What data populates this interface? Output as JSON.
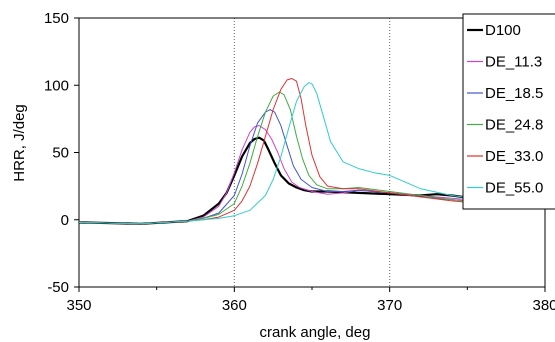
{
  "chart_data": {
    "type": "line",
    "title": "",
    "xlabel": "crank angle, deg",
    "ylabel": "HRR, J/deg",
    "xlim": [
      350,
      380
    ],
    "ylim": [
      -50,
      150
    ],
    "xticks": [
      350,
      360,
      370,
      380
    ],
    "yticks": [
      -50,
      0,
      50,
      100,
      150
    ],
    "xtick_labels": [
      "350",
      "360",
      "370",
      "380"
    ],
    "ytick_labels": [
      "-50",
      "0",
      "50",
      "100",
      "150"
    ],
    "grid": "vertical dotted at x ticks",
    "legend_position": "top-right",
    "series": [
      {
        "name": "D100",
        "color": "#000000",
        "width": 2.2,
        "x": [
          350,
          354,
          357,
          358,
          359,
          359.5,
          360,
          360.5,
          361,
          361.3,
          361.6,
          361.9,
          362.2,
          362.6,
          363,
          363.5,
          364,
          364.5,
          365,
          366,
          368,
          370,
          372,
          373,
          374,
          376,
          378,
          380
        ],
        "y": [
          -2,
          -3,
          -1,
          3,
          12,
          20,
          33,
          47,
          57,
          60,
          61,
          59,
          52,
          42,
          33,
          27,
          24,
          22,
          21,
          21,
          20,
          19,
          18,
          19,
          18,
          15,
          13,
          12
        ]
      },
      {
        "name": "DE_11.3",
        "color": "#cc44cc",
        "width": 1,
        "x": [
          350,
          354,
          357,
          358,
          359,
          359.5,
          360,
          360.5,
          361,
          361.3,
          361.6,
          362,
          362.4,
          362.8,
          363.2,
          363.7,
          364.2,
          365,
          366,
          367,
          368,
          370,
          372,
          374,
          376,
          378,
          380
        ],
        "y": [
          -2,
          -3,
          -1,
          2,
          10,
          20,
          35,
          52,
          65,
          69,
          70,
          67,
          60,
          50,
          38,
          28,
          24,
          21,
          19,
          20,
          22,
          20,
          18,
          16,
          14,
          12,
          11
        ]
      },
      {
        "name": "DE_18.5",
        "color": "#4455cc",
        "width": 1,
        "x": [
          350,
          354,
          357,
          358,
          359,
          360,
          360.5,
          361,
          361.5,
          362,
          362.3,
          362.6,
          363,
          363.4,
          363.8,
          364.3,
          365,
          366,
          367,
          368,
          370,
          372,
          374,
          376,
          378,
          380
        ],
        "y": [
          -2,
          -3,
          -1,
          1,
          5,
          18,
          34,
          55,
          72,
          80,
          82,
          80,
          70,
          55,
          40,
          30,
          24,
          21,
          21,
          22,
          20,
          17,
          15,
          13,
          12,
          11
        ]
      },
      {
        "name": "DE_24.8",
        "color": "#44aa44",
        "width": 1,
        "x": [
          350,
          354,
          357,
          358,
          359,
          360,
          360.5,
          361,
          361.5,
          362,
          362.5,
          362.9,
          363.2,
          363.6,
          364,
          364.4,
          364.8,
          365.3,
          366,
          367,
          368,
          370,
          372,
          374,
          376,
          378,
          380
        ],
        "y": [
          -2,
          -3,
          -1,
          1,
          4,
          12,
          25,
          42,
          62,
          80,
          92,
          95,
          93,
          82,
          62,
          45,
          33,
          26,
          23,
          23,
          24,
          21,
          18,
          15,
          13,
          12,
          11
        ]
      },
      {
        "name": "DE_33.0",
        "color": "#dd3333",
        "width": 1,
        "x": [
          350,
          354,
          357,
          358,
          359,
          360,
          360.5,
          361,
          361.5,
          362,
          362.5,
          363,
          363.4,
          363.7,
          364,
          364.3,
          364.6,
          365,
          365.5,
          366,
          367,
          368,
          370,
          372,
          374,
          376,
          378,
          380
        ],
        "y": [
          -2,
          -3,
          -1,
          0,
          2,
          7,
          14,
          25,
          42,
          62,
          82,
          97,
          104,
          105,
          103,
          90,
          70,
          48,
          32,
          25,
          23,
          23,
          20,
          17,
          14,
          12,
          11,
          10
        ]
      },
      {
        "name": "DE_55.0",
        "color": "#33cccc",
        "width": 1,
        "x": [
          350,
          354,
          357,
          358,
          359,
          360,
          361,
          362,
          362.5,
          363,
          363.5,
          364,
          364.5,
          364.8,
          365,
          365.3,
          365.7,
          366.2,
          367,
          368,
          369,
          370,
          371,
          372,
          374,
          376,
          378,
          380
        ],
        "y": [
          -2,
          -3,
          -1,
          0,
          1,
          3,
          7,
          18,
          30,
          47,
          68,
          88,
          99,
          102,
          101,
          94,
          78,
          58,
          43,
          38,
          35,
          33,
          28,
          23,
          18,
          15,
          13,
          12
        ]
      }
    ]
  }
}
